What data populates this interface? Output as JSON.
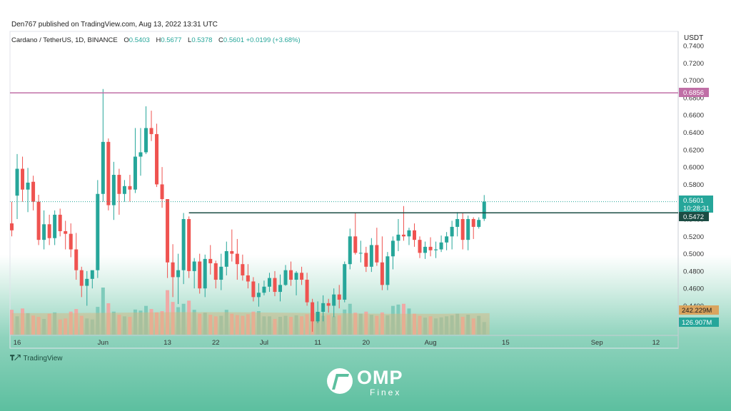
{
  "header": {
    "published": "Den767 published on TradingView.com, Aug 13, 2022 13:31 UTC",
    "symbol": "Cardano / TetherUS, 1D, BINANCE",
    "o_label": "O",
    "o_value": "0.5403",
    "h_label": "H",
    "h_value": "0.5677",
    "l_label": "L",
    "l_value": "0.5378",
    "c_label": "C",
    "c_value": "0.5601 +0.0199 (+3.68%)"
  },
  "axis_title": "USDT",
  "price_labels": {
    "resistance": "0.6856",
    "last": "0.5601",
    "countdown": "10:28:31",
    "support": "0.5472",
    "vol_ma": "242.229M",
    "vol": "126.907M"
  },
  "footer": {
    "tv_logo": "TradingView",
    "brand_name": "OMP",
    "brand_sub": "Finex"
  },
  "colors": {
    "up": "#26a69a",
    "down": "#ef5350",
    "resistance": "#c06fa6",
    "support": "#1b4d44",
    "vol_up": "#7fcbbb",
    "vol_down": "#f0a9a6"
  },
  "chart_data": {
    "type": "candlestick",
    "y_ticks": [
      "0.7400",
      "0.7200",
      "0.7000",
      "0.6800",
      "0.6600",
      "0.6400",
      "0.6200",
      "0.6000",
      "0.5800",
      "0.5600",
      "0.5400",
      "0.5200",
      "0.5000",
      "0.4800",
      "0.4600",
      "0.4400"
    ],
    "ylim": [
      0.435,
      0.7425
    ],
    "x_ticks": [
      {
        "label": "16",
        "idx": 1
      },
      {
        "label": "Jun",
        "idx": 17
      },
      {
        "label": "13",
        "idx": 29
      },
      {
        "label": "22",
        "idx": 38
      },
      {
        "label": "Jul",
        "idx": 47
      },
      {
        "label": "11",
        "idx": 57
      },
      {
        "label": "20",
        "idx": 66
      },
      {
        "label": "Aug",
        "idx": 78
      },
      {
        "label": "15",
        "idx": 92
      },
      {
        "label": "Sep",
        "idx": 109
      },
      {
        "label": "12",
        "idx": 120
      }
    ],
    "candles": [
      [
        0.535,
        0.56,
        0.52,
        0.527
      ],
      [
        0.567,
        0.615,
        0.54,
        0.598
      ],
      [
        0.598,
        0.612,
        0.56,
        0.574
      ],
      [
        0.574,
        0.599,
        0.548,
        0.582
      ],
      [
        0.583,
        0.59,
        0.55,
        0.56
      ],
      [
        0.56,
        0.568,
        0.51,
        0.516
      ],
      [
        0.516,
        0.55,
        0.505,
        0.534
      ],
      [
        0.534,
        0.545,
        0.51,
        0.518
      ],
      [
        0.518,
        0.55,
        0.51,
        0.545
      ],
      [
        0.545,
        0.552,
        0.52,
        0.526
      ],
      [
        0.526,
        0.538,
        0.505,
        0.523
      ],
      [
        0.523,
        0.535,
        0.496,
        0.505
      ],
      [
        0.505,
        0.524,
        0.47,
        0.481
      ],
      [
        0.481,
        0.485,
        0.45,
        0.463
      ],
      [
        0.463,
        0.48,
        0.44,
        0.471
      ],
      [
        0.471,
        0.48,
        0.46,
        0.481
      ],
      [
        0.481,
        0.585,
        0.472,
        0.569
      ],
      [
        0.569,
        0.69,
        0.56,
        0.629
      ],
      [
        0.629,
        0.633,
        0.55,
        0.556
      ],
      [
        0.556,
        0.606,
        0.539,
        0.591
      ],
      [
        0.591,
        0.598,
        0.545,
        0.569
      ],
      [
        0.569,
        0.585,
        0.56,
        0.578
      ],
      [
        0.578,
        0.591,
        0.56,
        0.574
      ],
      [
        0.574,
        0.645,
        0.57,
        0.612
      ],
      [
        0.612,
        0.645,
        0.59,
        0.617
      ],
      [
        0.617,
        0.67,
        0.615,
        0.645
      ],
      [
        0.645,
        0.665,
        0.63,
        0.638
      ],
      [
        0.638,
        0.65,
        0.577,
        0.58
      ],
      [
        0.58,
        0.6,
        0.553,
        0.563
      ],
      [
        0.563,
        0.563,
        0.472,
        0.49
      ],
      [
        0.49,
        0.511,
        0.45,
        0.473
      ],
      [
        0.473,
        0.5,
        0.442,
        0.481
      ],
      [
        0.481,
        0.547,
        0.465,
        0.54
      ],
      [
        0.54,
        0.543,
        0.472,
        0.48
      ],
      [
        0.48,
        0.495,
        0.46,
        0.491
      ],
      [
        0.491,
        0.5,
        0.454,
        0.46
      ],
      [
        0.46,
        0.499,
        0.45,
        0.494
      ],
      [
        0.494,
        0.51,
        0.476,
        0.489
      ],
      [
        0.489,
        0.492,
        0.46,
        0.47
      ],
      [
        0.47,
        0.5,
        0.458,
        0.485
      ],
      [
        0.485,
        0.514,
        0.475,
        0.503
      ],
      [
        0.503,
        0.528,
        0.491,
        0.5
      ],
      [
        0.5,
        0.517,
        0.47,
        0.488
      ],
      [
        0.488,
        0.499,
        0.469,
        0.475
      ],
      [
        0.475,
        0.488,
        0.46,
        0.468
      ],
      [
        0.468,
        0.473,
        0.445,
        0.45
      ],
      [
        0.45,
        0.466,
        0.439,
        0.455
      ],
      [
        0.455,
        0.469,
        0.452,
        0.462
      ],
      [
        0.462,
        0.478,
        0.456,
        0.472
      ],
      [
        0.472,
        0.48,
        0.451,
        0.456
      ],
      [
        0.456,
        0.476,
        0.445,
        0.464
      ],
      [
        0.464,
        0.487,
        0.463,
        0.481
      ],
      [
        0.481,
        0.491,
        0.463,
        0.47
      ],
      [
        0.47,
        0.48,
        0.452,
        0.478
      ],
      [
        0.478,
        0.485,
        0.464,
        0.47
      ],
      [
        0.47,
        0.478,
        0.44,
        0.444
      ],
      [
        0.444,
        0.448,
        0.41,
        0.422
      ],
      [
        0.422,
        0.445,
        0.42,
        0.433
      ],
      [
        0.433,
        0.452,
        0.422,
        0.443
      ],
      [
        0.443,
        0.448,
        0.432,
        0.44
      ],
      [
        0.44,
        0.46,
        0.427,
        0.453
      ],
      [
        0.453,
        0.464,
        0.437,
        0.447
      ],
      [
        0.447,
        0.491,
        0.444,
        0.488
      ],
      [
        0.488,
        0.529,
        0.482,
        0.52
      ],
      [
        0.52,
        0.547,
        0.499,
        0.501
      ],
      [
        0.501,
        0.515,
        0.49,
        0.501
      ],
      [
        0.501,
        0.508,
        0.479,
        0.485
      ],
      [
        0.485,
        0.518,
        0.479,
        0.51
      ],
      [
        0.51,
        0.53,
        0.486,
        0.49
      ],
      [
        0.49,
        0.52,
        0.458,
        0.464
      ],
      [
        0.464,
        0.502,
        0.458,
        0.497
      ],
      [
        0.497,
        0.52,
        0.482,
        0.515
      ],
      [
        0.515,
        0.54,
        0.503,
        0.522
      ],
      [
        0.522,
        0.555,
        0.515,
        0.52
      ],
      [
        0.52,
        0.53,
        0.51,
        0.527
      ],
      [
        0.527,
        0.535,
        0.508,
        0.516
      ],
      [
        0.516,
        0.52,
        0.495,
        0.501
      ],
      [
        0.501,
        0.514,
        0.494,
        0.508
      ],
      [
        0.508,
        0.519,
        0.497,
        0.504
      ],
      [
        0.504,
        0.514,
        0.495,
        0.505
      ],
      [
        0.505,
        0.521,
        0.502,
        0.513
      ],
      [
        0.513,
        0.525,
        0.504,
        0.52
      ],
      [
        0.52,
        0.538,
        0.505,
        0.531
      ],
      [
        0.531,
        0.548,
        0.52,
        0.54
      ],
      [
        0.54,
        0.547,
        0.505,
        0.516
      ],
      [
        0.516,
        0.544,
        0.504,
        0.54
      ],
      [
        0.54,
        0.542,
        0.517,
        0.531
      ],
      [
        0.531,
        0.542,
        0.529,
        0.539
      ],
      [
        0.5403,
        0.5677,
        0.5378,
        0.5601
      ]
    ],
    "volume_max": 150,
    "volumes": [
      95,
      70,
      100,
      82,
      73,
      68,
      60,
      80,
      85,
      58,
      62,
      88,
      98,
      72,
      62,
      58,
      106,
      180,
      120,
      88,
      76,
      70,
      68,
      96,
      92,
      110,
      98,
      85,
      90,
      170,
      125,
      105,
      118,
      130,
      95,
      80,
      84,
      76,
      70,
      72,
      95,
      80,
      75,
      72,
      78,
      88,
      90,
      70,
      70,
      60,
      68,
      72,
      68,
      74,
      70,
      78,
      102,
      80,
      72,
      75,
      70,
      74,
      96,
      118,
      84,
      80,
      88,
      76,
      72,
      85,
      74,
      110,
      115,
      118,
      100,
      80,
      72,
      65,
      70,
      62,
      66,
      70,
      74,
      80,
      68,
      76,
      62,
      72,
      48
    ],
    "vol_ma_curve": [
      [
        0,
        82
      ],
      [
        10,
        82
      ],
      [
        20,
        84
      ],
      [
        30,
        86
      ],
      [
        40,
        86
      ],
      [
        50,
        84
      ],
      [
        60,
        82
      ],
      [
        70,
        80
      ],
      [
        80,
        80
      ],
      [
        89,
        82
      ]
    ],
    "resistance": 0.6856,
    "support": 0.5472,
    "support_start_idx": 33,
    "last_price": 0.5601
  }
}
